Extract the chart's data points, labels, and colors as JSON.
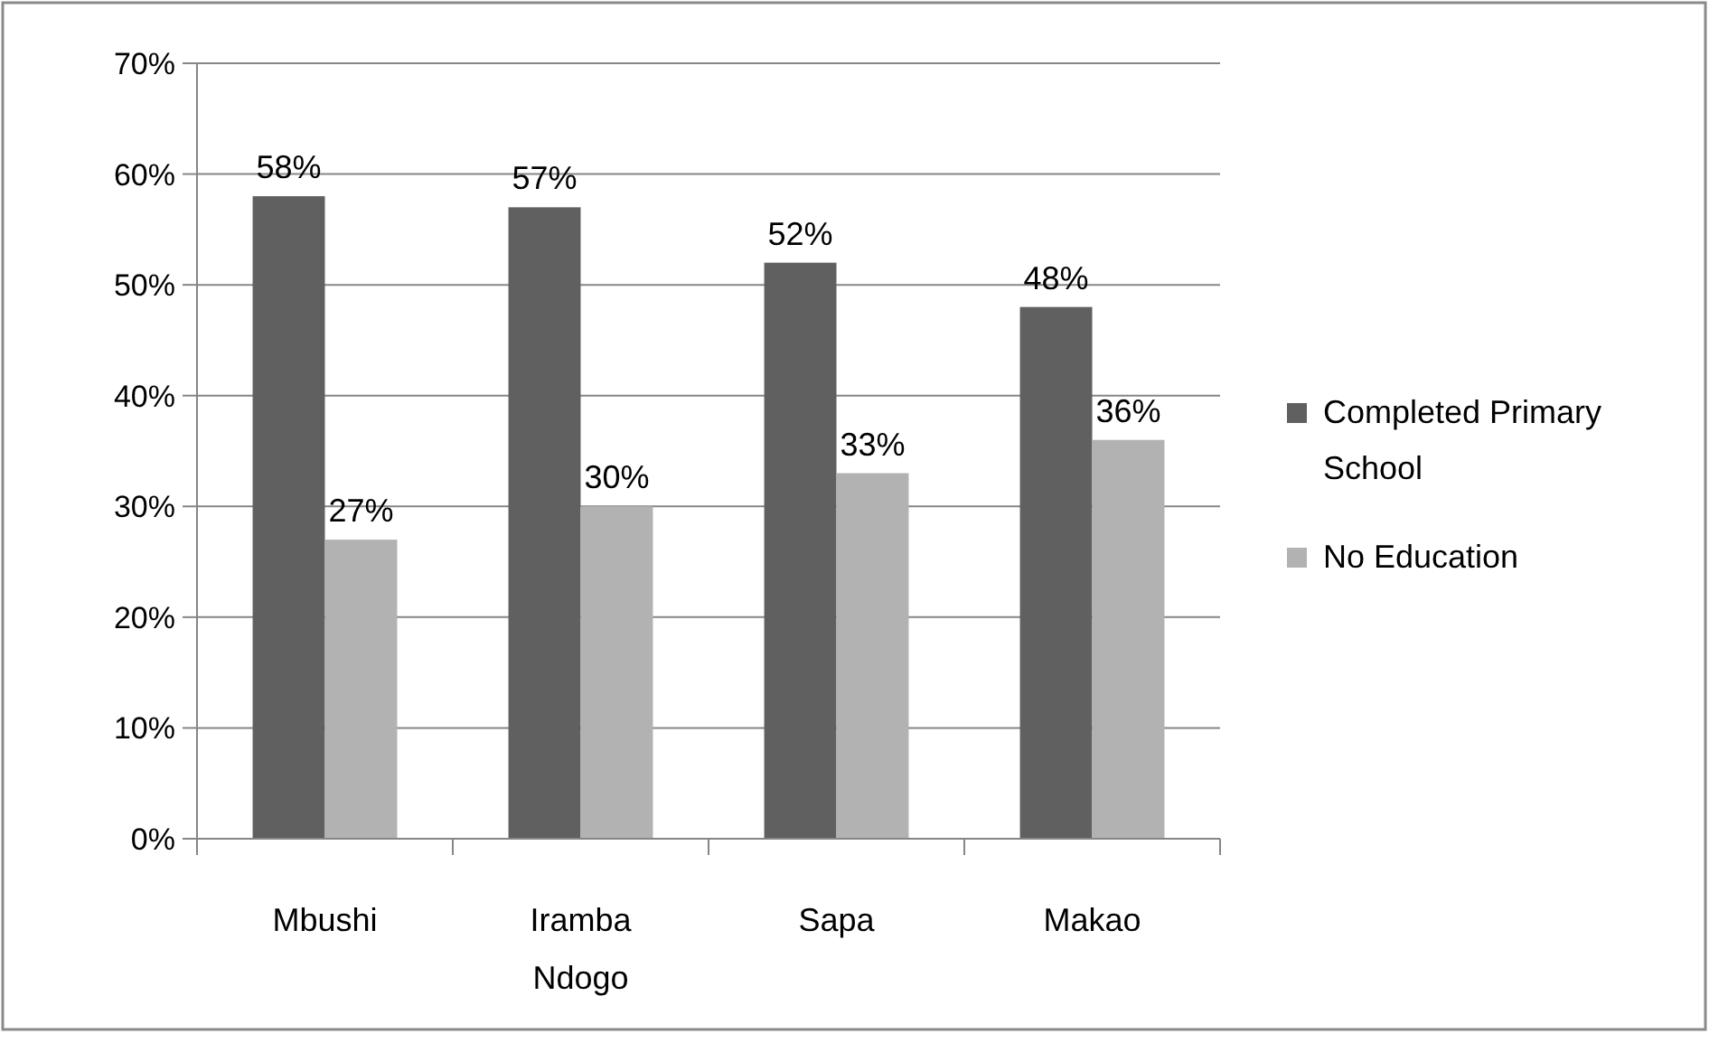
{
  "chart_data": {
    "type": "bar",
    "categories": [
      "Mbushi",
      "Iramba Ndogo",
      "Sapa",
      "Makao"
    ],
    "series": [
      {
        "name": "Completed Primary School",
        "color": "#606060",
        "values": [
          58,
          57,
          52,
          48
        ],
        "value_labels": [
          "58%",
          "57%",
          "52%",
          "48%"
        ]
      },
      {
        "name": "No Education",
        "color": "#b2b2b2",
        "values": [
          27,
          30,
          33,
          36
        ],
        "value_labels": [
          "27%",
          "30%",
          "33%",
          "36%"
        ]
      }
    ],
    "ylim": [
      0,
      70
    ],
    "yticks": [
      {
        "value": 0,
        "label": "0%"
      },
      {
        "value": 10,
        "label": "10%"
      },
      {
        "value": 20,
        "label": "20%"
      },
      {
        "value": 30,
        "label": "30%"
      },
      {
        "value": 40,
        "label": "40%"
      },
      {
        "value": 50,
        "label": "50%"
      },
      {
        "value": 60,
        "label": "60%"
      },
      {
        "value": 70,
        "label": "70%"
      }
    ],
    "grid": "y",
    "legend": "right"
  }
}
